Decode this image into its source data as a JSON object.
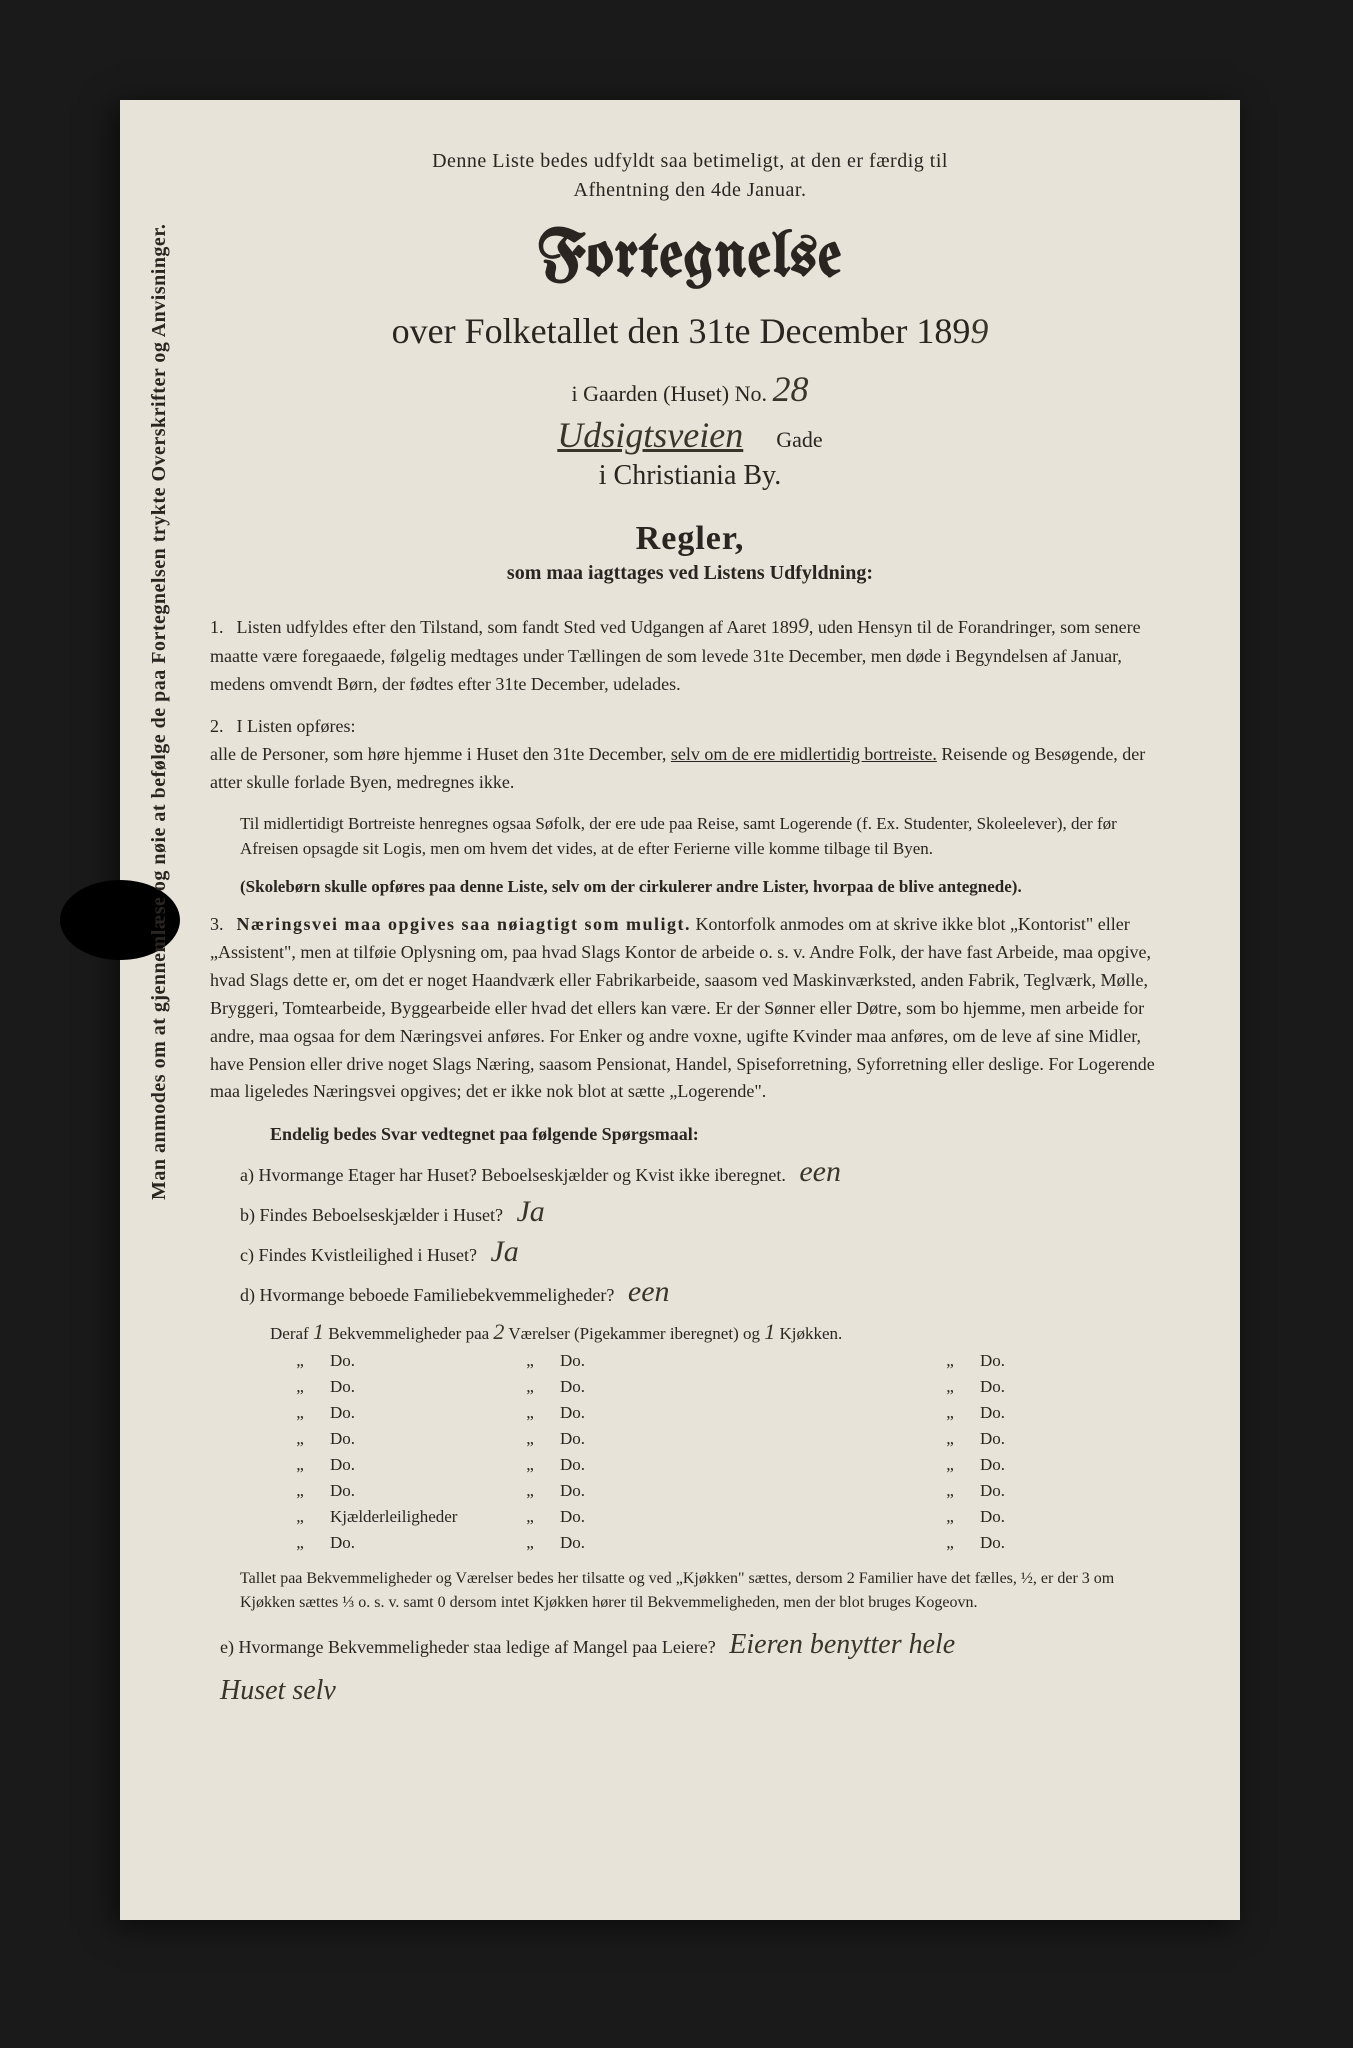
{
  "top_note_1": "Denne Liste bedes udfyldt saa betimeligt, at den er færdig til",
  "top_note_2": "Afhentning den 4de Januar.",
  "title": "Fortegnelse",
  "subtitle_prefix": "over Folketallet den 31te December 189",
  "year_digit": "9",
  "house_prefix": "i Gaarden (Huset) No.",
  "house_no": "28",
  "street_hand": "Udsigtsveien",
  "street_suffix": "Gade",
  "city": "i Christiania By.",
  "regler_head": "Regler,",
  "regler_sub": "som maa iagttages ved Listens Udfyldning:",
  "rule1_num": "1.",
  "rule1_a": "Listen udfyldes efter den Tilstand, som fandt Sted ved Udgangen af Aaret 189",
  "rule1_year": "9",
  "rule1_b": ", uden Hensyn til de Forandringer, som senere maatte være foregaaede, følgelig medtages under Tællingen de som levede 31te December, men døde i Begyndelsen af Januar, medens omvendt Børn, der fødtes efter 31te December, udelades.",
  "rule2_num": "2.",
  "rule2_a": "I Listen opføres:",
  "rule2_b": "alle de Personer, som høre hjemme i Huset den 31te December, ",
  "rule2_bold": "selv om de ere midlertidig bortreiste.",
  "rule2_c": " Reisende og Besøgende, der atter skulle forlade Byen, medregnes ikke.",
  "rule2_indent1": "Til midlertidigt Bortreiste henregnes ogsaa Søfolk, der ere ude paa Reise, samt Logerende (f. Ex. Studenter, Skoleelever), der før Afreisen opsagde sit Logis, men om hvem det vides, at de efter Ferierne ville komme tilbage til Byen.",
  "rule2_indent2": "(Skolebørn skulle opføres paa denne Liste, selv om der cirkulerer andre Lister, hvorpaa de blive antegnede).",
  "rule3_num": "3.",
  "rule3_a": "Næringsvei maa opgives saa nøiagtigt som muligt.",
  "rule3_b": " Kontorfolk anmodes om at skrive ikke blot „Kontorist\" eller „Assistent\", men at tilføie Oplysning om, paa hvad Slags Kontor de arbeide o. s. v. Andre Folk, der have fast Arbeide, maa opgive, hvad Slags dette er, om det er noget Haandværk eller Fabrikarbeide, saasom ved Maskinværksted, anden Fabrik, Teglværk, Mølle, Bryggeri, Tomtearbeide, Byggearbeide eller hvad det ellers kan være. Er der Sønner eller Døtre, som bo hjemme, men arbeide for andre, maa ogsaa for dem Næringsvei anføres. For Enker og andre voxne, ugifte Kvinder maa anføres, om de leve af sine Midler, have Pension eller drive noget Slags Næring, saasom Pensionat, Handel, Spiseforretning, Syforretning eller deslige. For Logerende maa ligeledes Næringsvei opgives; det er ikke nok blot at sætte „Logerende\".",
  "q_head": "Endelig bedes Svar vedtegnet paa følgende Spørgsmaal:",
  "qa_label": "a) Hvormange Etager har Huset? Beboelseskjælder og Kvist ikke iberegnet.",
  "qa_ans": "een",
  "qb_label": "b) Findes Beboelseskjælder i Huset?",
  "qb_ans": "Ja",
  "qc_label": "c) Findes Kvistleilighed i Huset?",
  "qc_ans": "Ja",
  "qd_label": "d) Hvormange beboede Familiebekvemmeligheder?",
  "qd_ans": "een",
  "deraf_a": "Deraf",
  "deraf_n1": "1",
  "deraf_b": "Bekvemmeligheder paa",
  "deraf_n2": "2",
  "deraf_c": "Værelser (Pigekammer iberegnet) og",
  "deraf_n3": "1",
  "deraf_d": "Kjøkken.",
  "ditto": "„",
  "do_txt": "Do.",
  "kjld": "Kjælderleiligheder",
  "bottom_para": "Tallet paa Bekvemmeligheder og Værelser bedes her tilsatte og ved „Kjøkken\" sættes, dersom 2 Familier have det fælles, ½, er der 3 om Kjøkken sættes ⅓ o. s. v. samt 0 dersom intet Kjøkken hører til Bekvemmeligheden, men der blot bruges Kogeovn.",
  "qe_label": "e) Hvormange Bekvemmeligheder staa ledige af Mangel paa Leiere?",
  "qe_ans": "Eieren benytter hele",
  "qe_ans2": "Huset selv",
  "side_text": "Man anmodes om at gjennemlæse og nøie at befølge de paa Fortegnelsen trykte Overskrifter og Anvisninger."
}
